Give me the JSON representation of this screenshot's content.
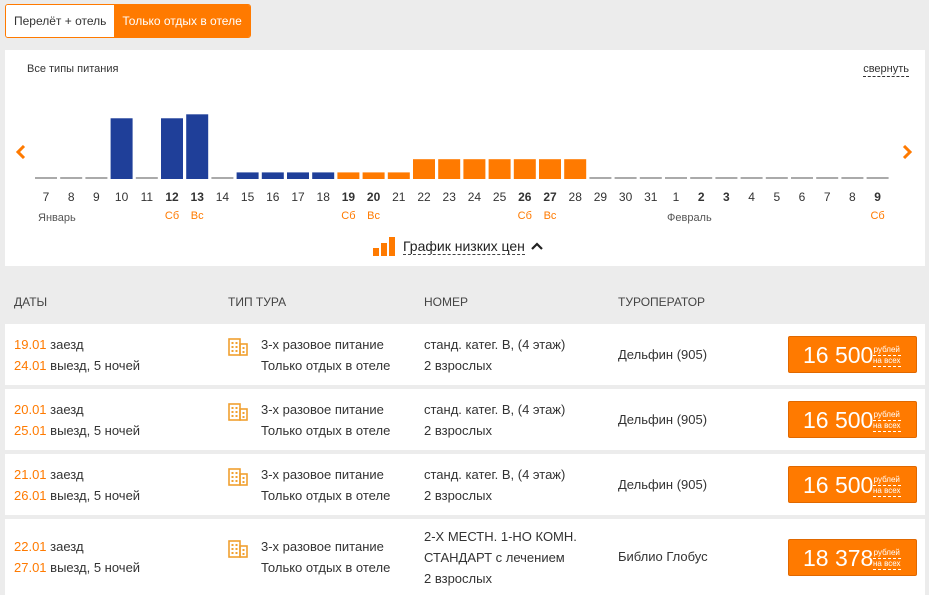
{
  "tabs": [
    {
      "label": "Перелёт + отель",
      "active": false
    },
    {
      "label": "Только отдых в отеле",
      "active": true
    }
  ],
  "calendar": {
    "filter_label": "Все типы питания",
    "collapse_label": "свернуть",
    "low_price_label": "График низких цен",
    "arrow_left": "‹",
    "arrow_right": "›",
    "months": [
      {
        "label": "Январь",
        "day_index": 0
      },
      {
        "label": "Февраль",
        "day_index": 25
      }
    ],
    "colors": {
      "blue": "#1f3f99",
      "orange": "#ff7a00",
      "empty": "#aaaaaa"
    },
    "days": [
      {
        "day": "7",
        "bold": false,
        "weekday": "",
        "level": 0,
        "color": "empty"
      },
      {
        "day": "8",
        "bold": false,
        "weekday": "",
        "level": 0,
        "color": "empty"
      },
      {
        "day": "9",
        "bold": false,
        "weekday": "",
        "level": 0,
        "color": "empty"
      },
      {
        "day": "10",
        "bold": false,
        "weekday": "",
        "level": 0.92,
        "color": "blue"
      },
      {
        "day": "11",
        "bold": false,
        "weekday": "",
        "level": 0,
        "color": "empty"
      },
      {
        "day": "12",
        "bold": true,
        "weekday": "Сб",
        "level": 0.92,
        "color": "blue"
      },
      {
        "day": "13",
        "bold": true,
        "weekday": "Вс",
        "level": 0.98,
        "color": "blue"
      },
      {
        "day": "14",
        "bold": false,
        "weekday": "",
        "level": 0,
        "color": "empty"
      },
      {
        "day": "15",
        "bold": false,
        "weekday": "",
        "level": 0.1,
        "color": "blue"
      },
      {
        "day": "16",
        "bold": false,
        "weekday": "",
        "level": 0.1,
        "color": "blue"
      },
      {
        "day": "17",
        "bold": false,
        "weekday": "",
        "level": 0.1,
        "color": "blue"
      },
      {
        "day": "18",
        "bold": false,
        "weekday": "",
        "level": 0.1,
        "color": "blue"
      },
      {
        "day": "19",
        "bold": true,
        "weekday": "Сб",
        "level": 0.1,
        "color": "orange"
      },
      {
        "day": "20",
        "bold": true,
        "weekday": "Вс",
        "level": 0.1,
        "color": "orange"
      },
      {
        "day": "21",
        "bold": false,
        "weekday": "",
        "level": 0.1,
        "color": "orange"
      },
      {
        "day": "22",
        "bold": false,
        "weekday": "",
        "level": 0.3,
        "color": "orange"
      },
      {
        "day": "23",
        "bold": false,
        "weekday": "",
        "level": 0.3,
        "color": "orange"
      },
      {
        "day": "24",
        "bold": false,
        "weekday": "",
        "level": 0.3,
        "color": "orange"
      },
      {
        "day": "25",
        "bold": false,
        "weekday": "",
        "level": 0.3,
        "color": "orange"
      },
      {
        "day": "26",
        "bold": true,
        "weekday": "Сб",
        "level": 0.3,
        "color": "orange"
      },
      {
        "day": "27",
        "bold": true,
        "weekday": "Вс",
        "level": 0.3,
        "color": "orange"
      },
      {
        "day": "28",
        "bold": false,
        "weekday": "",
        "level": 0.3,
        "color": "orange"
      },
      {
        "day": "29",
        "bold": false,
        "weekday": "",
        "level": 0,
        "color": "empty"
      },
      {
        "day": "30",
        "bold": false,
        "weekday": "",
        "level": 0,
        "color": "empty"
      },
      {
        "day": "31",
        "bold": false,
        "weekday": "",
        "level": 0,
        "color": "empty"
      },
      {
        "day": "1",
        "bold": false,
        "weekday": "",
        "level": 0,
        "color": "empty"
      },
      {
        "day": "2",
        "bold": true,
        "weekday": "",
        "level": 0,
        "color": "empty"
      },
      {
        "day": "3",
        "bold": true,
        "weekday": "",
        "level": 0,
        "color": "empty"
      },
      {
        "day": "4",
        "bold": false,
        "weekday": "",
        "level": 0,
        "color": "empty"
      },
      {
        "day": "5",
        "bold": false,
        "weekday": "",
        "level": 0,
        "color": "empty"
      },
      {
        "day": "6",
        "bold": false,
        "weekday": "",
        "level": 0,
        "color": "empty"
      },
      {
        "day": "7",
        "bold": false,
        "weekday": "",
        "level": 0,
        "color": "empty"
      },
      {
        "day": "8",
        "bold": false,
        "weekday": "",
        "level": 0,
        "color": "empty"
      },
      {
        "day": "9",
        "bold": true,
        "weekday": "Сб",
        "level": 0,
        "color": "empty"
      }
    ]
  },
  "table": {
    "headers": {
      "dates": "ДАТЫ",
      "tour_type": "ТИП ТУРА",
      "room": "НОМЕР",
      "operator": "ТУРОПЕРАТОР"
    },
    "rows": [
      {
        "in_date": "19.01",
        "in_label": " заезд",
        "out_date": "24.01",
        "out_label": " выезд, 5 ночей",
        "meal": "3-х разовое питание",
        "tour": "Только отдых в отеле",
        "room": [
          "станд. катег. B, (4 этаж)",
          "2 взрослых"
        ],
        "operator": "Дельфин (905)",
        "price": "16 500",
        "cur_top": "рублей",
        "cur_bottom": "на всех"
      },
      {
        "in_date": "20.01",
        "in_label": " заезд",
        "out_date": "25.01",
        "out_label": " выезд, 5 ночей",
        "meal": "3-х разовое питание",
        "tour": "Только отдых в отеле",
        "room": [
          "станд. катег. B, (4 этаж)",
          "2 взрослых"
        ],
        "operator": "Дельфин (905)",
        "price": "16 500",
        "cur_top": "рублей",
        "cur_bottom": "на всех"
      },
      {
        "in_date": "21.01",
        "in_label": " заезд",
        "out_date": "26.01",
        "out_label": " выезд, 5 ночей",
        "meal": "3-х разовое питание",
        "tour": "Только отдых в отеле",
        "room": [
          "станд. катег. B, (4 этаж)",
          "2 взрослых"
        ],
        "operator": "Дельфин (905)",
        "price": "16 500",
        "cur_top": "рублей",
        "cur_bottom": "на всех"
      },
      {
        "in_date": "22.01",
        "in_label": " заезд",
        "out_date": "27.01",
        "out_label": " выезд, 5 ночей",
        "meal": "3-х разовое питание",
        "tour": "Только отдых в отеле",
        "room": [
          "2-Х МЕСТН. 1-НО КОМН.",
          "СТАНДАРТ с лечением",
          "2 взрослых"
        ],
        "operator": "Библио Глобус",
        "price": "18 378",
        "cur_top": "рублей",
        "cur_bottom": "на всех"
      }
    ]
  }
}
